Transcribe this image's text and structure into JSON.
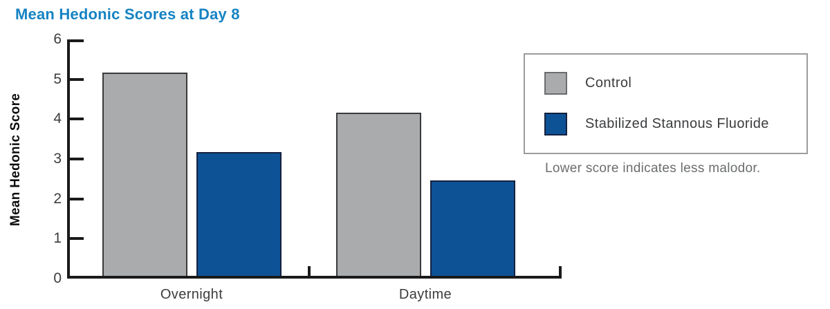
{
  "title": "Mean Hedonic Scores at Day 8",
  "legend": {
    "items": [
      {
        "label": "Control",
        "color": "#aaabad"
      },
      {
        "label": "Stabilized Stannous Fluoride",
        "color": "#0e5296"
      }
    ],
    "note": "Lower score indicates less malodor."
  },
  "colors": {
    "title_blue": "#1583c3",
    "control_gray": "#aaabad",
    "treatment_blue": "#0e5296",
    "axis_black": "#1a1a1a",
    "note_gray": "#6a6d6f"
  },
  "chart_data": {
    "type": "bar",
    "categories": [
      "Overnight",
      "Daytime"
    ],
    "series": [
      {
        "name": "Control",
        "values": [
          5.1,
          4.1
        ],
        "color": "#aaabad"
      },
      {
        "name": "Stabilized Stannous Fluoride",
        "values": [
          3.1,
          2.4
        ],
        "color": "#0e5296"
      }
    ],
    "title": "Mean Hedonic Scores at Day 8",
    "xlabel": "",
    "ylabel": "Mean Hedonic Score",
    "ylim": [
      0,
      6
    ],
    "yticks": [
      0,
      1,
      2,
      3,
      4,
      5,
      6
    ],
    "grid": false,
    "legend_position": "right",
    "note": "Lower score indicates less malodor."
  }
}
